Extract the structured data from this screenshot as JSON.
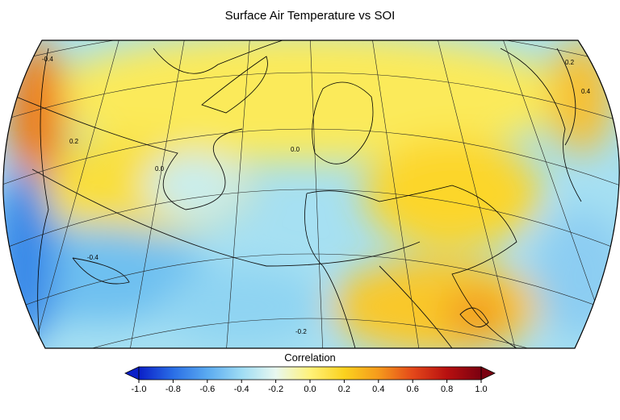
{
  "title": "Surface Air Temperature vs SOI",
  "map": {
    "contour_labels": [
      "-0.4",
      "0.2",
      "0.0",
      "0.0",
      "-0.4",
      "-0.2",
      "0.2",
      "0.4"
    ]
  },
  "colorbar": {
    "label": "Correlation",
    "clim": [
      -1,
      1
    ],
    "ticks": [
      {
        "value": -1,
        "label": "-1.0"
      },
      -0.8,
      -0.6,
      -0.4,
      -0.2,
      {
        "value": 0,
        "label": "0.0"
      },
      0.2,
      0.4,
      0.6,
      0.8,
      {
        "value": 1,
        "label": "1.0"
      }
    ],
    "colormap": [
      "#0a1fc8",
      "#2a6ee6",
      "#5aaaf0",
      "#9edcf4",
      "#e8f8f0",
      "#fff27a",
      "#fbd21e",
      "#f59a1c",
      "#e4481a",
      "#b81010",
      "#7a0010"
    ],
    "under_color": "#0a1fc8",
    "over_color": "#7a0010"
  }
}
